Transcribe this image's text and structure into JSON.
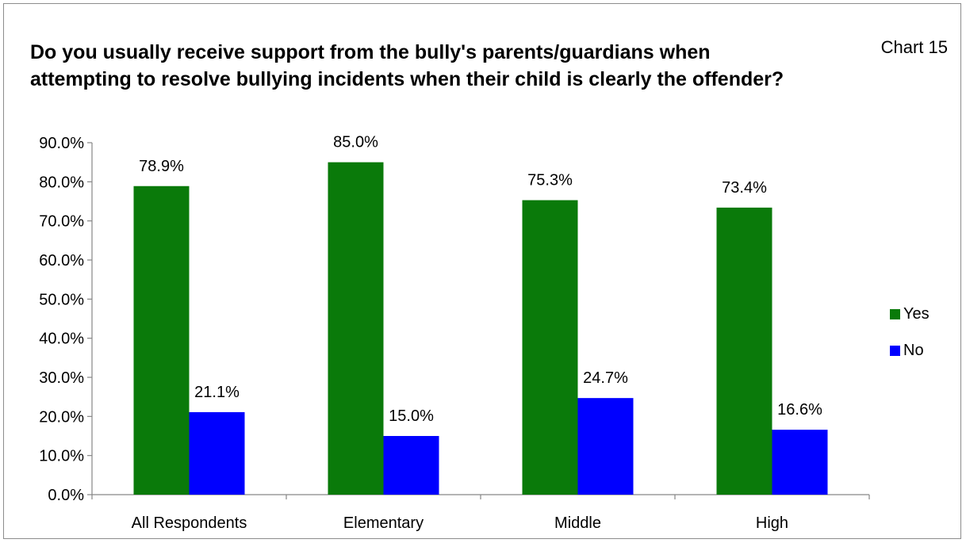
{
  "chart_label": "Chart 15",
  "chart_data": {
    "type": "bar",
    "title": "Do you usually receive support from the  bully's parents/guardians when attempting to resolve bullying incidents when their child is clearly the offender?",
    "categories": [
      "All Respondents",
      "Elementary",
      "Middle",
      "High"
    ],
    "series": [
      {
        "name": "Yes",
        "values": [
          78.9,
          85.0,
          75.3,
          73.4
        ],
        "color": "#0a7a0a"
      },
      {
        "name": "No",
        "values": [
          21.1,
          15.0,
          24.7,
          16.6
        ],
        "color": "#0000ff"
      }
    ],
    "data_labels": [
      [
        "78.9%",
        "85.0%",
        "75.3%",
        "73.4%"
      ],
      [
        "21.1%",
        "15.0%",
        "24.7%",
        "16.6%"
      ]
    ],
    "yticks": [
      "0.0%",
      "10.0%",
      "20.0%",
      "30.0%",
      "40.0%",
      "50.0%",
      "60.0%",
      "70.0%",
      "80.0%",
      "90.0%"
    ],
    "ylim": [
      0,
      90
    ],
    "xlabel": "",
    "ylabel": "",
    "grid": false,
    "legend_position": "right"
  }
}
